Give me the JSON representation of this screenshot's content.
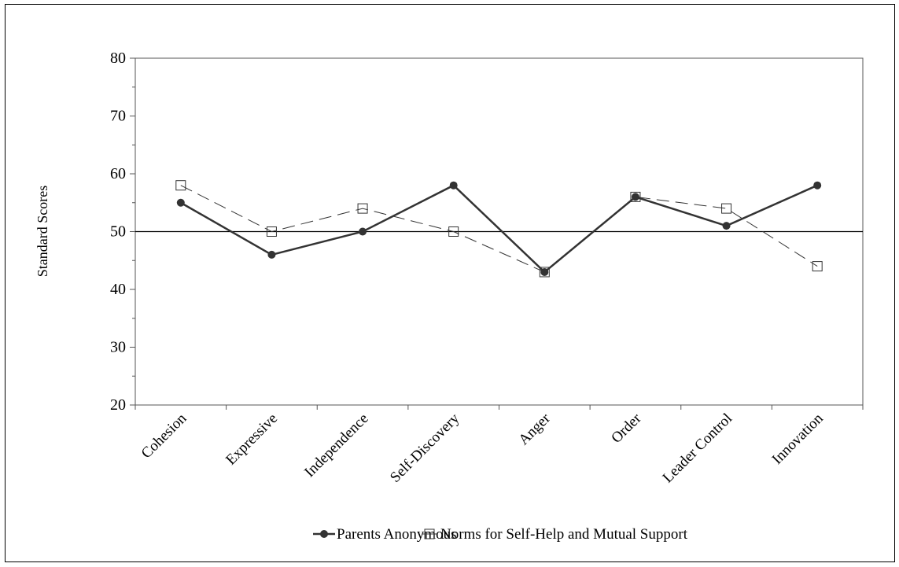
{
  "chart_data": {
    "type": "line",
    "ylabel": "Standard Scores",
    "xlabel": "",
    "title": "",
    "ylim": [
      20,
      80
    ],
    "yticks": [
      20,
      30,
      40,
      50,
      60,
      70,
      80
    ],
    "categories": [
      "Cohesion",
      "Expressive",
      "Independence",
      "Self-Discovery",
      "Anger",
      "Order",
      "Leader Control",
      "Innovation"
    ],
    "reference_line": 50,
    "legend_position": "bottom",
    "series": [
      {
        "name": "Parents Anonymous",
        "values": [
          55,
          46,
          50,
          58,
          43,
          56,
          51,
          58
        ],
        "marker": "filled-circle",
        "line": "solid",
        "color": "#333333"
      },
      {
        "name": "Norms for Self-Help and Mutual Support",
        "values": [
          58,
          50,
          54,
          50,
          43,
          56,
          54,
          44
        ],
        "marker": "open-square",
        "line": "dashed",
        "color": "#333333"
      }
    ]
  }
}
